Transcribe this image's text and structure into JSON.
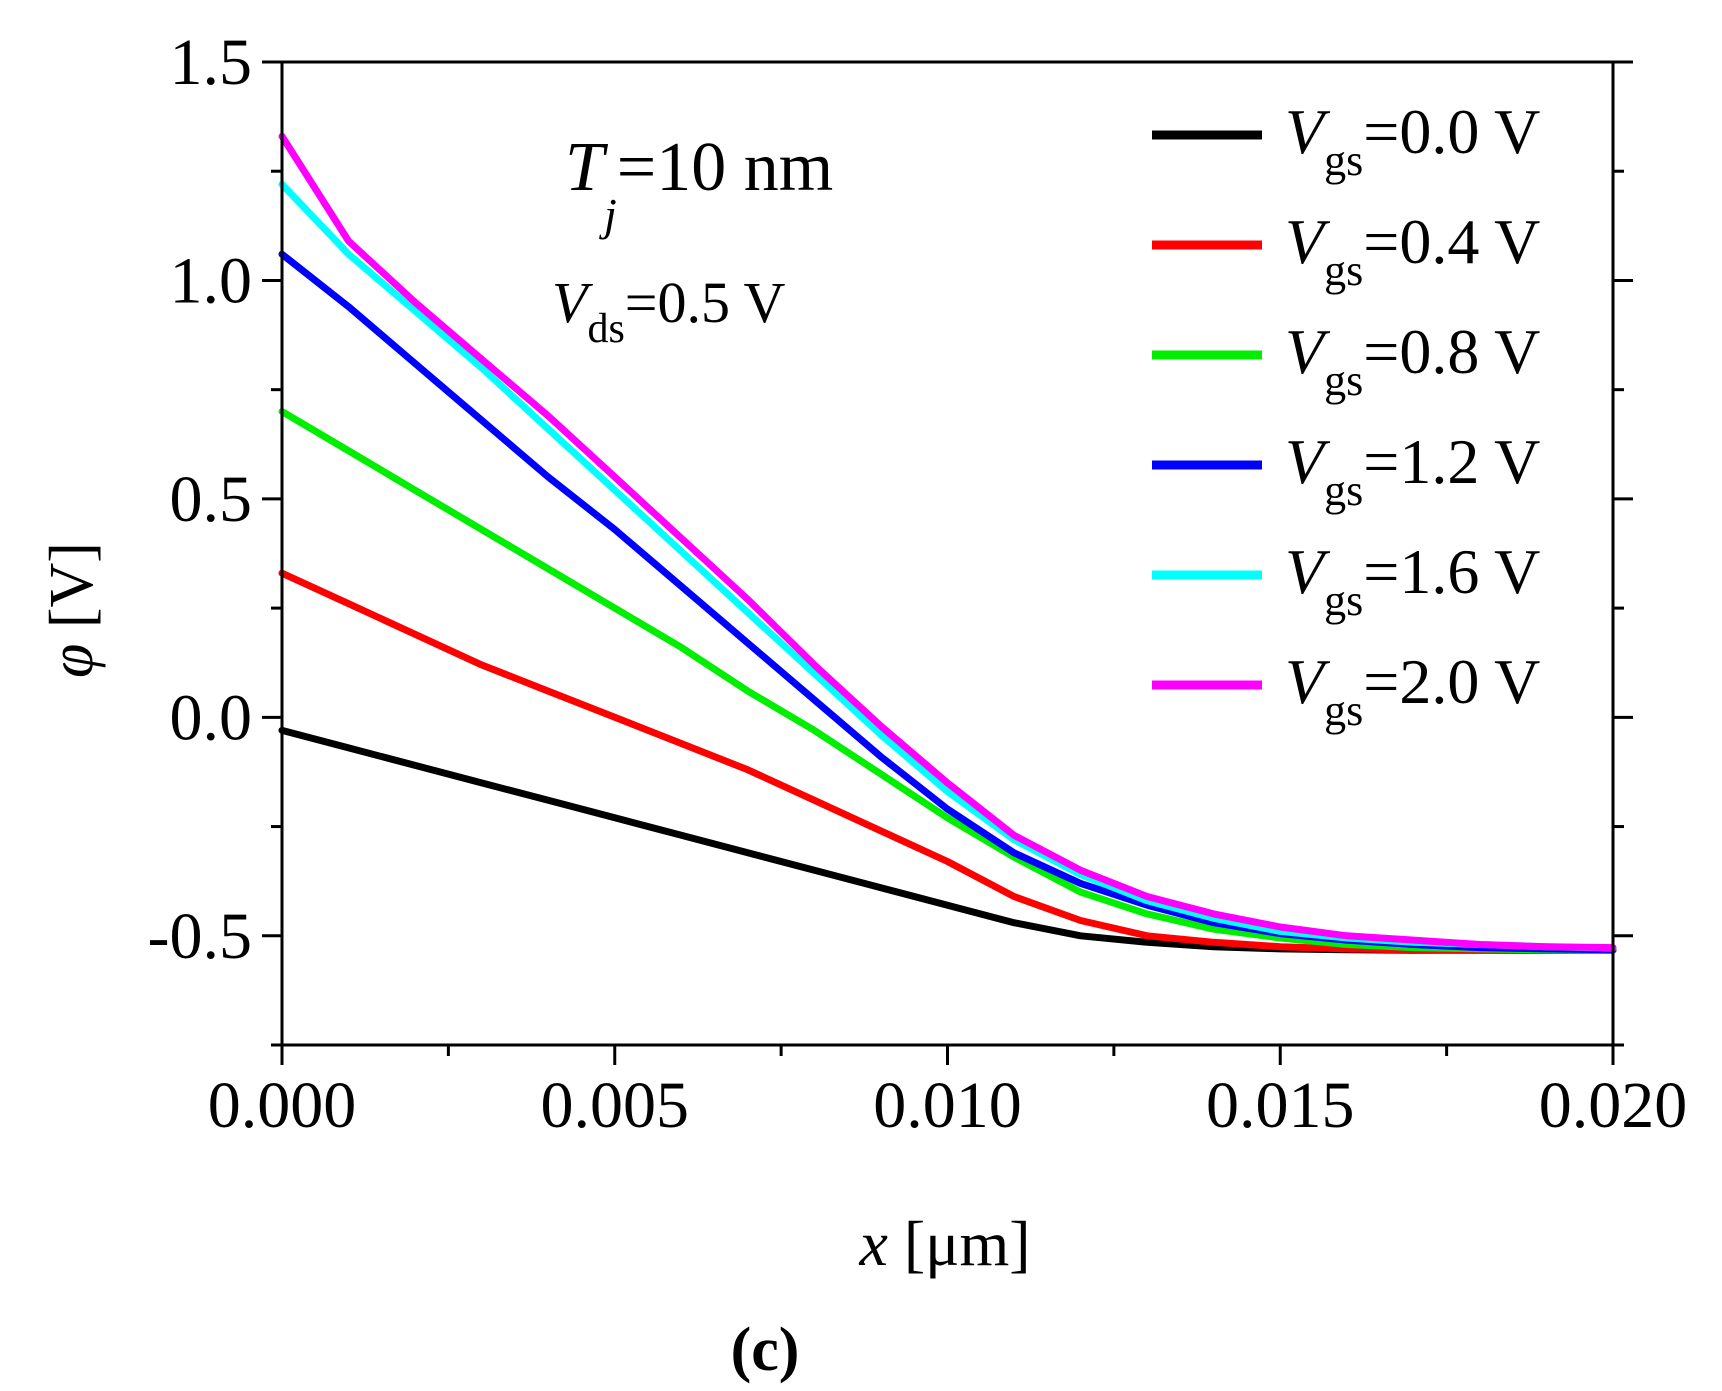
{
  "chart_data": {
    "type": "line",
    "panel_label": "(c)",
    "xlabel_var": "x",
    "xlabel_unit": "[μm]",
    "ylabel_var": "φ",
    "ylabel_unit": "[V]",
    "xlim": [
      0,
      0.02
    ],
    "ylim": [
      -0.75,
      1.5
    ],
    "xticks": [
      0.0,
      0.005,
      0.01,
      0.015,
      0.02
    ],
    "xtick_labels": [
      "0.000",
      "0.005",
      "0.010",
      "0.015",
      "0.020"
    ],
    "yticks": [
      -0.5,
      0.0,
      0.5,
      1.0,
      1.5
    ],
    "ytick_labels": [
      "-0.5",
      "0.0",
      "0.5",
      "1.0",
      "1.5"
    ],
    "annotations": [
      {
        "var": "T",
        "sub": "j",
        "rest": "=10 nm"
      },
      {
        "var": "V",
        "sub": "ds",
        "rest": "=0.5 V"
      }
    ],
    "legend_position": "top-right",
    "x": [
      0,
      0.001,
      0.002,
      0.003,
      0.004,
      0.005,
      0.006,
      0.007,
      0.008,
      0.009,
      0.01,
      0.011,
      0.012,
      0.013,
      0.014,
      0.015,
      0.016,
      0.017,
      0.018,
      0.019,
      0.02
    ],
    "series": [
      {
        "name_var": "V",
        "name_sub": "gs",
        "name_rest": "=0.0 V",
        "color": "#000000",
        "values": [
          -0.03,
          -0.07,
          -0.11,
          -0.15,
          -0.19,
          -0.23,
          -0.27,
          -0.31,
          -0.35,
          -0.39,
          -0.43,
          -0.47,
          -0.5,
          -0.515,
          -0.525,
          -0.53,
          -0.532,
          -0.533,
          -0.533,
          -0.533,
          -0.533
        ]
      },
      {
        "name_var": "V",
        "name_sub": "gs",
        "name_rest": "=0.4 V",
        "color": "#ff0000",
        "values": [
          0.33,
          0.26,
          0.19,
          0.12,
          0.06,
          0.0,
          -0.06,
          -0.12,
          -0.19,
          -0.26,
          -0.33,
          -0.41,
          -0.465,
          -0.5,
          -0.515,
          -0.525,
          -0.53,
          -0.532,
          -0.533,
          -0.533,
          -0.533
        ]
      },
      {
        "name_var": "V",
        "name_sub": "gs",
        "name_rest": "=0.8 V",
        "color": "#00ee00",
        "values": [
          0.7,
          0.61,
          0.52,
          0.43,
          0.34,
          0.25,
          0.16,
          0.06,
          -0.03,
          -0.13,
          -0.23,
          -0.32,
          -0.4,
          -0.45,
          -0.485,
          -0.505,
          -0.52,
          -0.527,
          -0.53,
          -0.532,
          -0.533
        ]
      },
      {
        "name_var": "V",
        "name_sub": "gs",
        "name_rest": "=1.2 V",
        "color": "#0000ff",
        "values": [
          1.06,
          0.94,
          0.81,
          0.68,
          0.55,
          0.43,
          0.3,
          0.17,
          0.04,
          -0.09,
          -0.21,
          -0.31,
          -0.38,
          -0.43,
          -0.47,
          -0.495,
          -0.51,
          -0.52,
          -0.527,
          -0.53,
          -0.532
        ]
      },
      {
        "name_var": "V",
        "name_sub": "gs",
        "name_rest": "=1.6 V",
        "color": "#00ffff",
        "values": [
          1.22,
          1.06,
          0.93,
          0.8,
          0.66,
          0.52,
          0.38,
          0.24,
          0.1,
          -0.04,
          -0.17,
          -0.28,
          -0.36,
          -0.42,
          -0.46,
          -0.49,
          -0.505,
          -0.515,
          -0.52,
          -0.525,
          -0.528
        ]
      },
      {
        "name_var": "V",
        "name_sub": "gs",
        "name_rest": "=2.0 V",
        "color": "#ff00ff",
        "values": [
          1.33,
          1.09,
          0.95,
          0.82,
          0.69,
          0.55,
          0.41,
          0.27,
          0.12,
          -0.02,
          -0.15,
          -0.27,
          -0.35,
          -0.41,
          -0.45,
          -0.48,
          -0.5,
          -0.51,
          -0.52,
          -0.525,
          -0.527
        ]
      }
    ]
  }
}
